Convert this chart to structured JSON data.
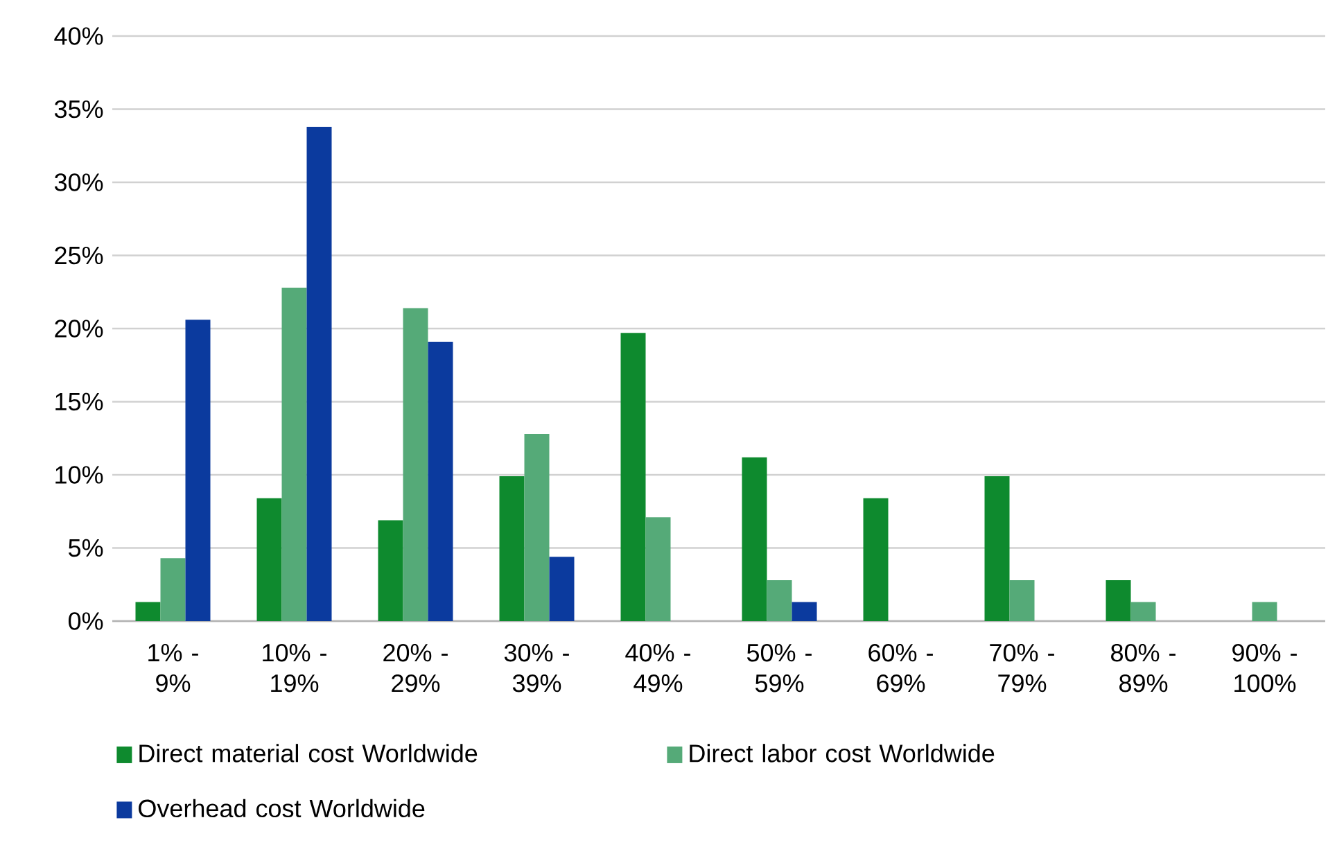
{
  "chart_data": {
    "type": "bar",
    "categories": [
      "1% - 9%",
      "10% - 19%",
      "20% - 29%",
      "30% - 39%",
      "40% - 49%",
      "50% - 59%",
      "60% - 69%",
      "70% - 79%",
      "80% - 89%",
      "90% - 100%"
    ],
    "series": [
      {
        "name": "Direct material cost Worldwide",
        "color": "#0e8a2e",
        "values": [
          1.3,
          8.4,
          6.9,
          9.9,
          19.7,
          11.2,
          8.4,
          9.9,
          2.8,
          0
        ]
      },
      {
        "name": "Direct labor cost Worldwide",
        "color": "#55aa78",
        "values": [
          4.3,
          22.8,
          21.4,
          12.8,
          7.1,
          2.8,
          0,
          2.8,
          1.3,
          1.3
        ]
      },
      {
        "name": "Overhead cost Worldwide",
        "color": "#0b3a9e",
        "values": [
          20.6,
          33.8,
          19.1,
          4.4,
          0,
          1.3,
          0,
          0,
          0,
          0
        ]
      }
    ],
    "ylim": [
      0,
      40
    ],
    "yticks": [
      {
        "value": 0,
        "label": "0%"
      },
      {
        "value": 5,
        "label": "5%"
      },
      {
        "value": 10,
        "label": "10%"
      },
      {
        "value": 15,
        "label": "15%"
      },
      {
        "value": 20,
        "label": "20%"
      },
      {
        "value": 25,
        "label": "25%"
      },
      {
        "value": 30,
        "label": "30%"
      },
      {
        "value": 35,
        "label": "35%"
      },
      {
        "value": 40,
        "label": "40%"
      }
    ],
    "grid": "y",
    "legend": "bottom"
  }
}
